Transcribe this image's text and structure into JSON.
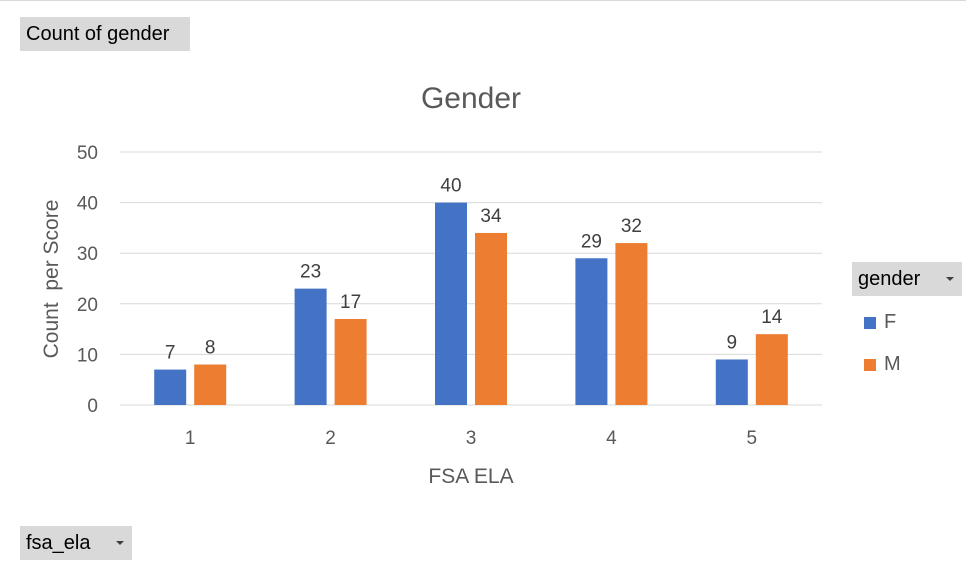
{
  "pivot": {
    "value_field": "Count of gender",
    "row_field": "fsa_ela",
    "legend_field": "gender"
  },
  "colors": {
    "F": "#4472c4",
    "M": "#ed7d31",
    "grid": "#d9d9d9",
    "text": "#595959"
  },
  "chart_data": {
    "type": "bar",
    "title": "Gender",
    "xlabel": "FSA ELA",
    "ylabel": "Count  per Score",
    "categories": [
      "1",
      "2",
      "3",
      "4",
      "5"
    ],
    "series": [
      {
        "name": "F",
        "values": [
          7,
          23,
          40,
          29,
          9
        ]
      },
      {
        "name": "M",
        "values": [
          8,
          17,
          34,
          32,
          14
        ]
      }
    ],
    "ylim": [
      0,
      50
    ],
    "yticks": [
      0,
      10,
      20,
      30,
      40,
      50
    ],
    "grid": true,
    "legend_position": "right",
    "data_labels": true
  }
}
